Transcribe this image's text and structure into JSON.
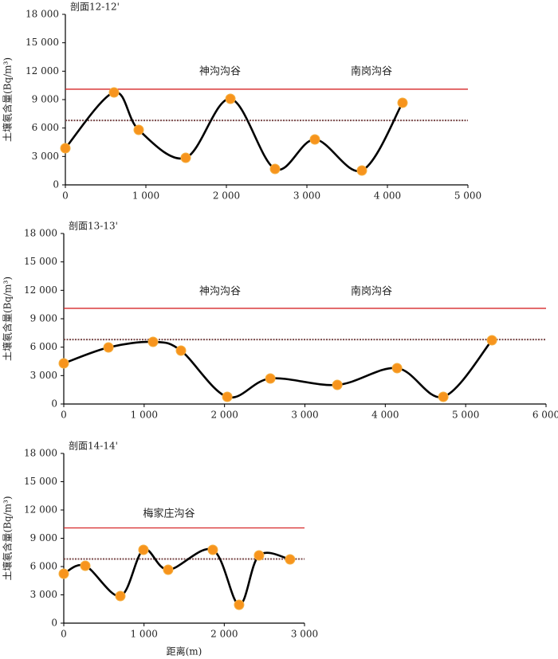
{
  "chart_data": [
    {
      "type": "line",
      "title": "剖面12-12'",
      "ylabel": "土壤氡含量(Bq/m³)",
      "annotations": [
        "神沟沟谷",
        "南岗沟谷"
      ],
      "x": [
        0,
        604,
        911,
        1495,
        2050,
        2604,
        3099,
        3683,
        4188
      ],
      "series": [
        {
          "color": "#000000",
          "marker_color": "#f7941d",
          "values": [
            3870,
            9756,
            5803,
            2860,
            9083,
            1682,
            4794,
            1514,
            8663
          ]
        }
      ],
      "hlines": [
        {
          "value": 10100,
          "color": "#d62728",
          "style": "solid"
        },
        {
          "value": 6800,
          "color": "#7a4a4a",
          "style": "dotted"
        }
      ],
      "xlim": [
        0,
        5000
      ],
      "xticks": [
        0,
        {
          "value": 1000,
          "label": "1 000"
        },
        {
          "value": 2000,
          "label": "2 000"
        },
        {
          "value": 3000,
          "label": "3 000"
        },
        {
          "value": 4000,
          "label": "4 000"
        },
        {
          "value": 5000,
          "label": "5 000"
        }
      ],
      "ylim": [
        0,
        18000
      ],
      "yticks": [
        0,
        {
          "value": 3000,
          "label": "3 000"
        },
        {
          "value": 6000,
          "label": "6 000"
        },
        {
          "value": 9000,
          "label": "9 000"
        },
        {
          "value": 12000,
          "label": "12 000"
        },
        {
          "value": 15000,
          "label": "15 000"
        },
        {
          "value": 18000,
          "label": "18 000"
        }
      ]
    },
    {
      "type": "line",
      "title": "剖面13-13'",
      "ylabel": "土壤氡含量(Bq/m³)",
      "annotations": [
        "神沟沟谷",
        "南岗沟谷"
      ],
      "x": [
        0,
        556,
        1111,
        1458,
        2034,
        2570,
        3403,
        4147,
        4722,
        5327
      ],
      "series": [
        {
          "color": "#000000",
          "marker_color": "#f7941d",
          "values": [
            4290,
            5972,
            6560,
            5635,
            757,
            2691,
            2018,
            3785,
            757,
            6728
          ]
        }
      ],
      "hlines": [
        {
          "value": 10100,
          "color": "#d62728",
          "style": "solid"
        },
        {
          "value": 6800,
          "color": "#7a4a4a",
          "style": "dotted"
        }
      ],
      "xlim": [
        0,
        6000
      ],
      "xticks": [
        0,
        {
          "value": 1000,
          "label": "1 000"
        },
        {
          "value": 2000,
          "label": "2 000"
        },
        {
          "value": 3000,
          "label": "3 000"
        },
        {
          "value": 4000,
          "label": "4 000"
        },
        {
          "value": 5000,
          "label": "5 000"
        },
        {
          "value": 6000,
          "label": "6 000"
        }
      ],
      "ylim": [
        0,
        18000
      ],
      "yticks": [
        0,
        {
          "value": 3000,
          "label": "3 000"
        },
        {
          "value": 6000,
          "label": "6 000"
        },
        {
          "value": 9000,
          "label": "9 000"
        },
        {
          "value": 12000,
          "label": "12 000"
        },
        {
          "value": 15000,
          "label": "15 000"
        },
        {
          "value": 18000,
          "label": "18 000"
        }
      ]
    },
    {
      "type": "line",
      "title": "剖面14-14'",
      "ylabel": "土壤氡含量(Bq/m³)",
      "xlabel": "距离(m)",
      "annotations": [
        "梅家庄沟谷"
      ],
      "x": [
        0,
        268,
        705,
        993,
        1301,
        1857,
        2185,
        2433,
        2820
      ],
      "series": [
        {
          "color": "#000000",
          "marker_color": "#f7941d",
          "values": [
            5239,
            6085,
            2873,
            7775,
            5662,
            7775,
            1944,
            7183,
            6761
          ]
        }
      ],
      "hlines": [
        {
          "value": 10100,
          "color": "#d62728",
          "style": "solid"
        },
        {
          "value": 6800,
          "color": "#7a4a4a",
          "style": "dotted"
        }
      ],
      "xlim": [
        0,
        3000
      ],
      "xticks": [
        0,
        {
          "value": 1000,
          "label": "1 000"
        },
        {
          "value": 2000,
          "label": "2 000"
        },
        {
          "value": 3000,
          "label": "3 000"
        }
      ],
      "ylim": [
        0,
        18000
      ],
      "yticks": [
        0,
        {
          "value": 3000,
          "label": "3 000"
        },
        {
          "value": 6000,
          "label": "6 000"
        },
        {
          "value": 9000,
          "label": "9 000"
        },
        {
          "value": 12000,
          "label": "12 000"
        },
        {
          "value": 15000,
          "label": "15 000"
        },
        {
          "value": 18000,
          "label": "18 000"
        }
      ]
    }
  ]
}
